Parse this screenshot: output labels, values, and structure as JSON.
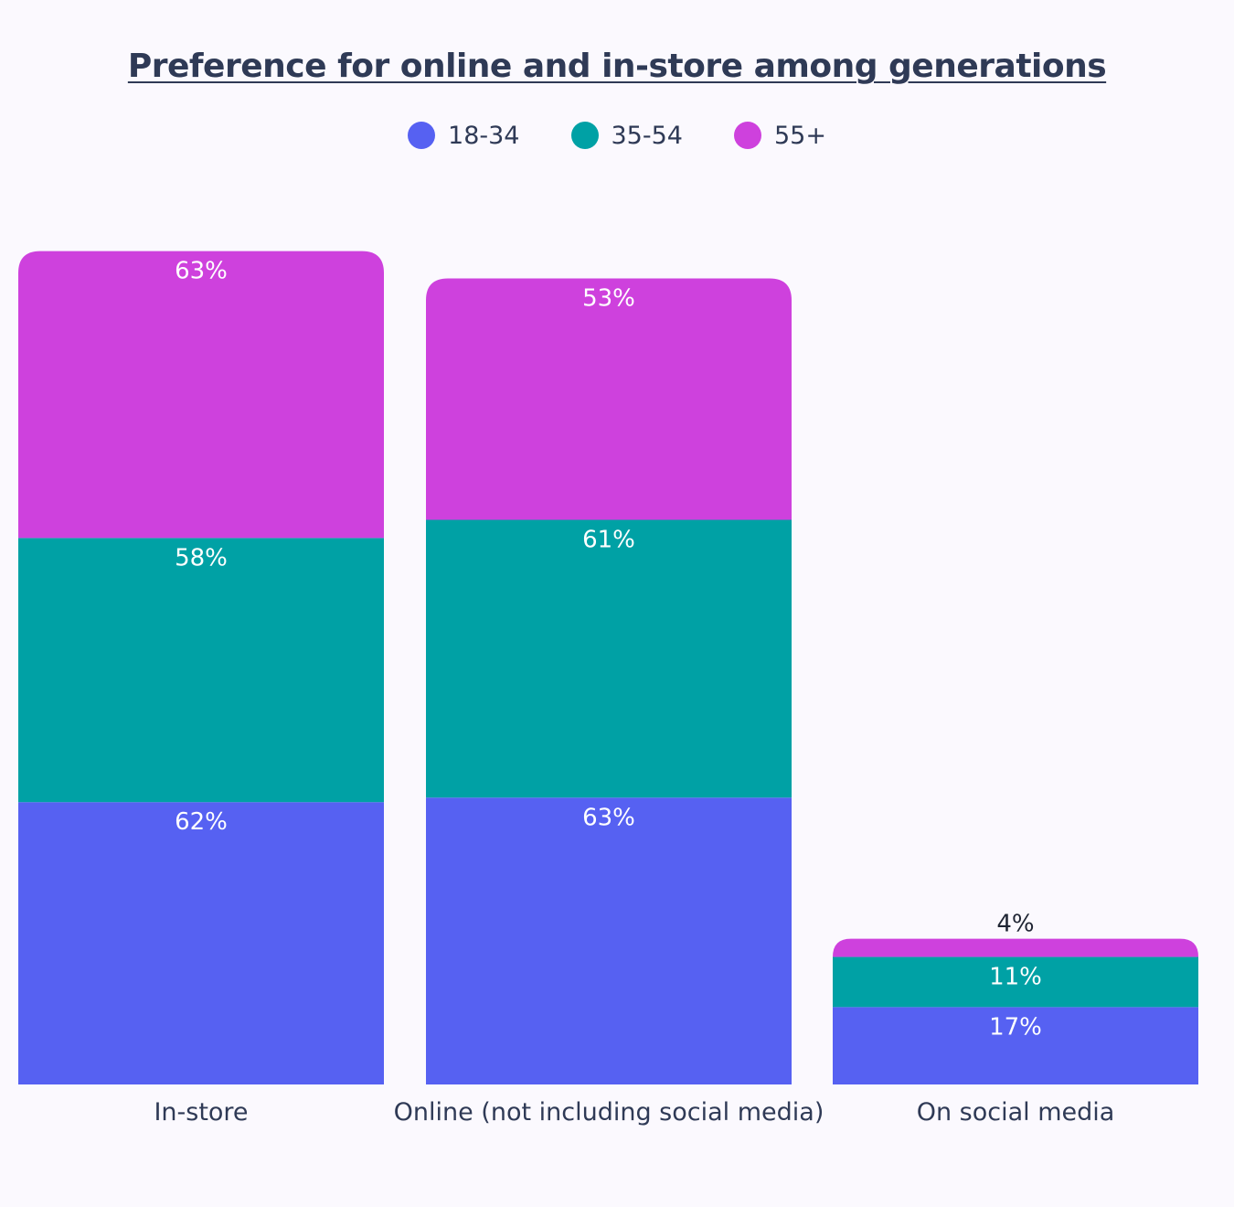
{
  "chart_data": {
    "type": "bar",
    "stacked": true,
    "title": "Preference for online and in-store among generations",
    "categories": [
      "In-store",
      "Online (not including social media)",
      "On social media"
    ],
    "series": [
      {
        "name": "18-34",
        "color": "#5661f2",
        "values": [
          62,
          63,
          17
        ]
      },
      {
        "name": "35-54",
        "color": "#00a1a5",
        "values": [
          58,
          61,
          11
        ]
      },
      {
        "name": "55+",
        "color": "#ce41dd",
        "values": [
          63,
          53,
          4
        ]
      }
    ],
    "value_suffix": "%",
    "legend_position": "top-center",
    "grid": false,
    "xlabel": "",
    "ylabel": ""
  }
}
